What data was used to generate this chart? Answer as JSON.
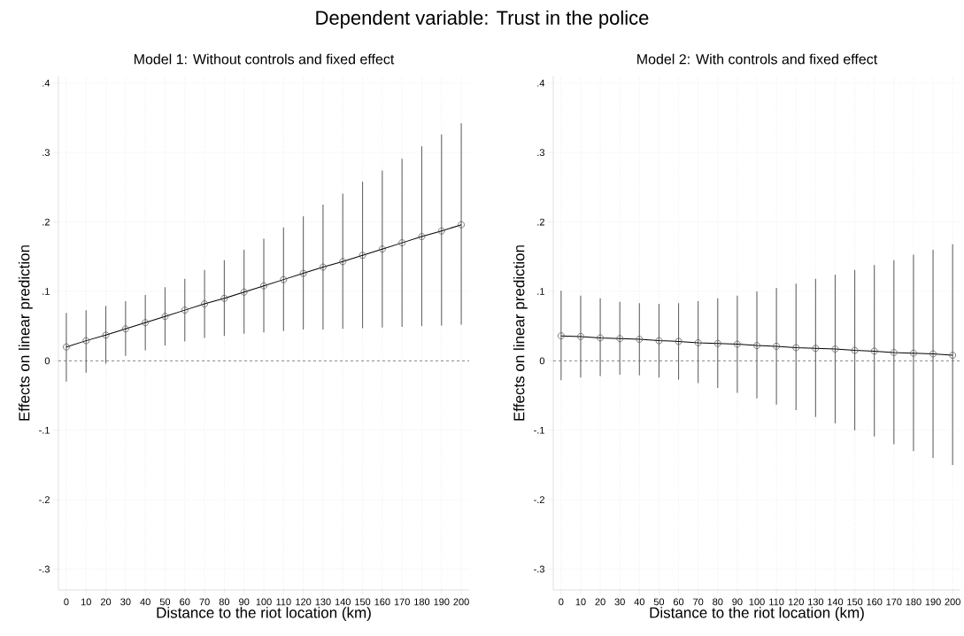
{
  "chart_data": [
    {
      "type": "other",
      "title": "Dependent variable: Trust in the police"
    },
    {
      "type": "line",
      "title": "Model 1: Without controls and fixed effect",
      "xlabel": "Distance to the riot location (km)",
      "ylabel": "Effects on linear prediction",
      "x": [
        0,
        10,
        20,
        30,
        40,
        50,
        60,
        70,
        80,
        90,
        100,
        110,
        120,
        130,
        140,
        150,
        160,
        170,
        180,
        190,
        200
      ],
      "series": [
        {
          "color": "#000000",
          "values": [
            0.02,
            0.029,
            0.037,
            0.046,
            0.055,
            0.064,
            0.073,
            0.082,
            0.09,
            0.099,
            0.108,
            0.117,
            0.126,
            0.135,
            0.143,
            0.152,
            0.161,
            0.17,
            0.179,
            0.187,
            0.196
          ],
          "errors": [
            [
              -0.03,
              0.069
            ],
            [
              -0.017,
              0.073
            ],
            [
              -0.004,
              0.079
            ],
            [
              0.007,
              0.086
            ],
            [
              0.015,
              0.095
            ],
            [
              0.022,
              0.106
            ],
            [
              0.028,
              0.118
            ],
            [
              0.033,
              0.131
            ],
            [
              0.036,
              0.145
            ],
            [
              0.039,
              0.16
            ],
            [
              0.041,
              0.176
            ],
            [
              0.043,
              0.192
            ],
            [
              0.045,
              0.208
            ],
            [
              0.045,
              0.225
            ],
            [
              0.046,
              0.241
            ],
            [
              0.047,
              0.258
            ],
            [
              0.048,
              0.274
            ],
            [
              0.049,
              0.291
            ],
            [
              0.05,
              0.309
            ],
            [
              0.051,
              0.326
            ],
            [
              0.052,
              0.342
            ]
          ]
        }
      ],
      "xlim": [
        -4,
        204
      ],
      "ylim": [
        -0.33,
        0.41
      ],
      "xticks": [
        0,
        10,
        20,
        30,
        40,
        50,
        60,
        70,
        80,
        90,
        100,
        110,
        120,
        130,
        140,
        150,
        160,
        170,
        180,
        190,
        200
      ],
      "yticks": [
        {
          "value": -0.3,
          "label": "-.3"
        },
        {
          "value": -0.2,
          "label": "-.2"
        },
        {
          "value": -0.1,
          "label": "-.1"
        },
        0,
        {
          "value": 0.1,
          "label": ".1"
        },
        {
          "value": 0.2,
          "label": ".2"
        },
        {
          "value": 0.3,
          "label": ".3"
        },
        {
          "value": 0.4,
          "label": ".4"
        }
      ],
      "ref_lines": [
        {
          "axis": "y",
          "value": 0,
          "color": "#555555",
          "line_style": "dashed"
        }
      ],
      "grid": true,
      "marker": "circle",
      "line_style": "solid"
    },
    {
      "type": "line",
      "title": "Model 2: With controls and fixed effect",
      "xlabel": "Distance to the riot location (km)",
      "ylabel": "Effects on linear prediction",
      "x": [
        0,
        10,
        20,
        30,
        40,
        50,
        60,
        70,
        80,
        90,
        100,
        110,
        120,
        130,
        140,
        150,
        160,
        170,
        180,
        190,
        200
      ],
      "series": [
        {
          "color": "#000000",
          "values": [
            0.036,
            0.035,
            0.033,
            0.032,
            0.031,
            0.029,
            0.028,
            0.026,
            0.025,
            0.024,
            0.022,
            0.021,
            0.019,
            0.018,
            0.017,
            0.015,
            0.014,
            0.012,
            0.011,
            0.01,
            0.008
          ],
          "errors": [
            [
              -0.028,
              0.101
            ],
            [
              -0.024,
              0.094
            ],
            [
              -0.022,
              0.09
            ],
            [
              -0.02,
              0.085
            ],
            [
              -0.021,
              0.083
            ],
            [
              -0.024,
              0.082
            ],
            [
              -0.027,
              0.083
            ],
            [
              -0.032,
              0.086
            ],
            [
              -0.039,
              0.09
            ],
            [
              -0.046,
              0.094
            ],
            [
              -0.054,
              0.1
            ],
            [
              -0.063,
              0.105
            ],
            [
              -0.071,
              0.111
            ],
            [
              -0.081,
              0.118
            ],
            [
              -0.09,
              0.124
            ],
            [
              -0.1,
              0.131
            ],
            [
              -0.109,
              0.138
            ],
            [
              -0.12,
              0.145
            ],
            [
              -0.13,
              0.153
            ],
            [
              -0.14,
              0.16
            ],
            [
              -0.15,
              0.168
            ]
          ]
        }
      ],
      "xlim": [
        -4,
        204
      ],
      "ylim": [
        -0.33,
        0.41
      ],
      "xticks": [
        0,
        10,
        20,
        30,
        40,
        50,
        60,
        70,
        80,
        90,
        100,
        110,
        120,
        130,
        140,
        150,
        160,
        170,
        180,
        190,
        200
      ],
      "yticks": [
        {
          "value": -0.3,
          "label": "-.3"
        },
        {
          "value": -0.2,
          "label": "-.2"
        },
        {
          "value": -0.1,
          "label": "-.1"
        },
        0,
        {
          "value": 0.1,
          "label": ".1"
        },
        {
          "value": 0.2,
          "label": ".2"
        },
        {
          "value": 0.3,
          "label": ".3"
        },
        {
          "value": 0.4,
          "label": ".4"
        }
      ],
      "ref_lines": [
        {
          "axis": "y",
          "value": 0,
          "color": "#555555",
          "line_style": "dashed"
        }
      ],
      "grid": true,
      "marker": "circle",
      "line_style": "solid"
    }
  ]
}
